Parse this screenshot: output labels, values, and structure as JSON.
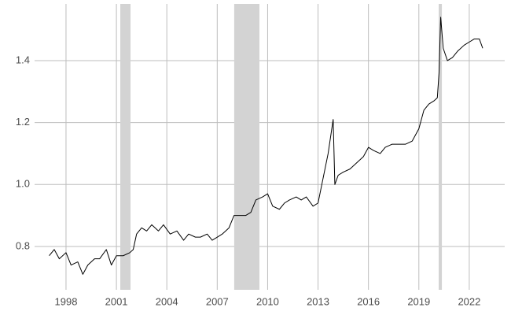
{
  "chart_data": {
    "type": "line",
    "x": [
      1997.0,
      1997.3,
      1997.6,
      1998.0,
      1998.3,
      1998.7,
      1999.0,
      1999.3,
      1999.7,
      2000.0,
      2000.4,
      2000.7,
      2001.0,
      2001.4,
      2001.8,
      2002.0,
      2002.2,
      2002.5,
      2002.8,
      2003.1,
      2003.5,
      2003.8,
      2004.2,
      2004.6,
      2005.0,
      2005.3,
      2005.7,
      2006.0,
      2006.4,
      2006.7,
      2007.0,
      2007.3,
      2007.7,
      2008.0,
      2008.3,
      2008.7,
      2009.0,
      2009.3,
      2009.7,
      2010.0,
      2010.3,
      2010.7,
      2011.0,
      2011.3,
      2011.7,
      2012.0,
      2012.3,
      2012.7,
      2013.0,
      2013.3,
      2013.6,
      2013.9,
      2014.0,
      2014.2,
      2014.5,
      2014.9,
      2015.3,
      2015.7,
      2016.0,
      2016.3,
      2016.7,
      2017.0,
      2017.4,
      2017.8,
      2018.2,
      2018.6,
      2019.0,
      2019.3,
      2019.6,
      2019.9,
      2020.1,
      2020.2,
      2020.3,
      2020.45,
      2020.7,
      2021.0,
      2021.3,
      2021.7,
      2022.0,
      2022.3,
      2022.6,
      2022.8
    ],
    "y": [
      0.77,
      0.79,
      0.76,
      0.78,
      0.74,
      0.75,
      0.71,
      0.74,
      0.76,
      0.76,
      0.79,
      0.74,
      0.77,
      0.77,
      0.78,
      0.79,
      0.84,
      0.86,
      0.85,
      0.87,
      0.85,
      0.87,
      0.84,
      0.85,
      0.82,
      0.84,
      0.83,
      0.83,
      0.84,
      0.82,
      0.83,
      0.84,
      0.86,
      0.9,
      0.9,
      0.9,
      0.91,
      0.95,
      0.96,
      0.97,
      0.93,
      0.92,
      0.94,
      0.95,
      0.96,
      0.95,
      0.96,
      0.93,
      0.94,
      1.02,
      1.1,
      1.21,
      1.0,
      1.03,
      1.04,
      1.05,
      1.07,
      1.09,
      1.12,
      1.11,
      1.1,
      1.12,
      1.13,
      1.13,
      1.13,
      1.14,
      1.18,
      1.24,
      1.26,
      1.27,
      1.28,
      1.36,
      1.54,
      1.44,
      1.4,
      1.41,
      1.43,
      1.45,
      1.46,
      1.47,
      1.47,
      1.44
    ],
    "color": "#000000",
    "shaded_ranges": [
      [
        2001.23,
        2001.84
      ],
      [
        2008.01,
        2009.51
      ],
      [
        2020.18,
        2020.37
      ]
    ],
    "shade_color": "#d3d3d3",
    "xlim": [
      1996.13,
      2024.11
    ],
    "ylim": [
      0.66,
      1.583
    ],
    "xticks": [
      1998,
      2001,
      2004,
      2007,
      2010,
      2013,
      2016,
      2019,
      2022
    ],
    "yticks": [
      0.8,
      {
        "value": 1,
        "label": "1.0"
      },
      1.2,
      1.4
    ],
    "grid": true
  }
}
